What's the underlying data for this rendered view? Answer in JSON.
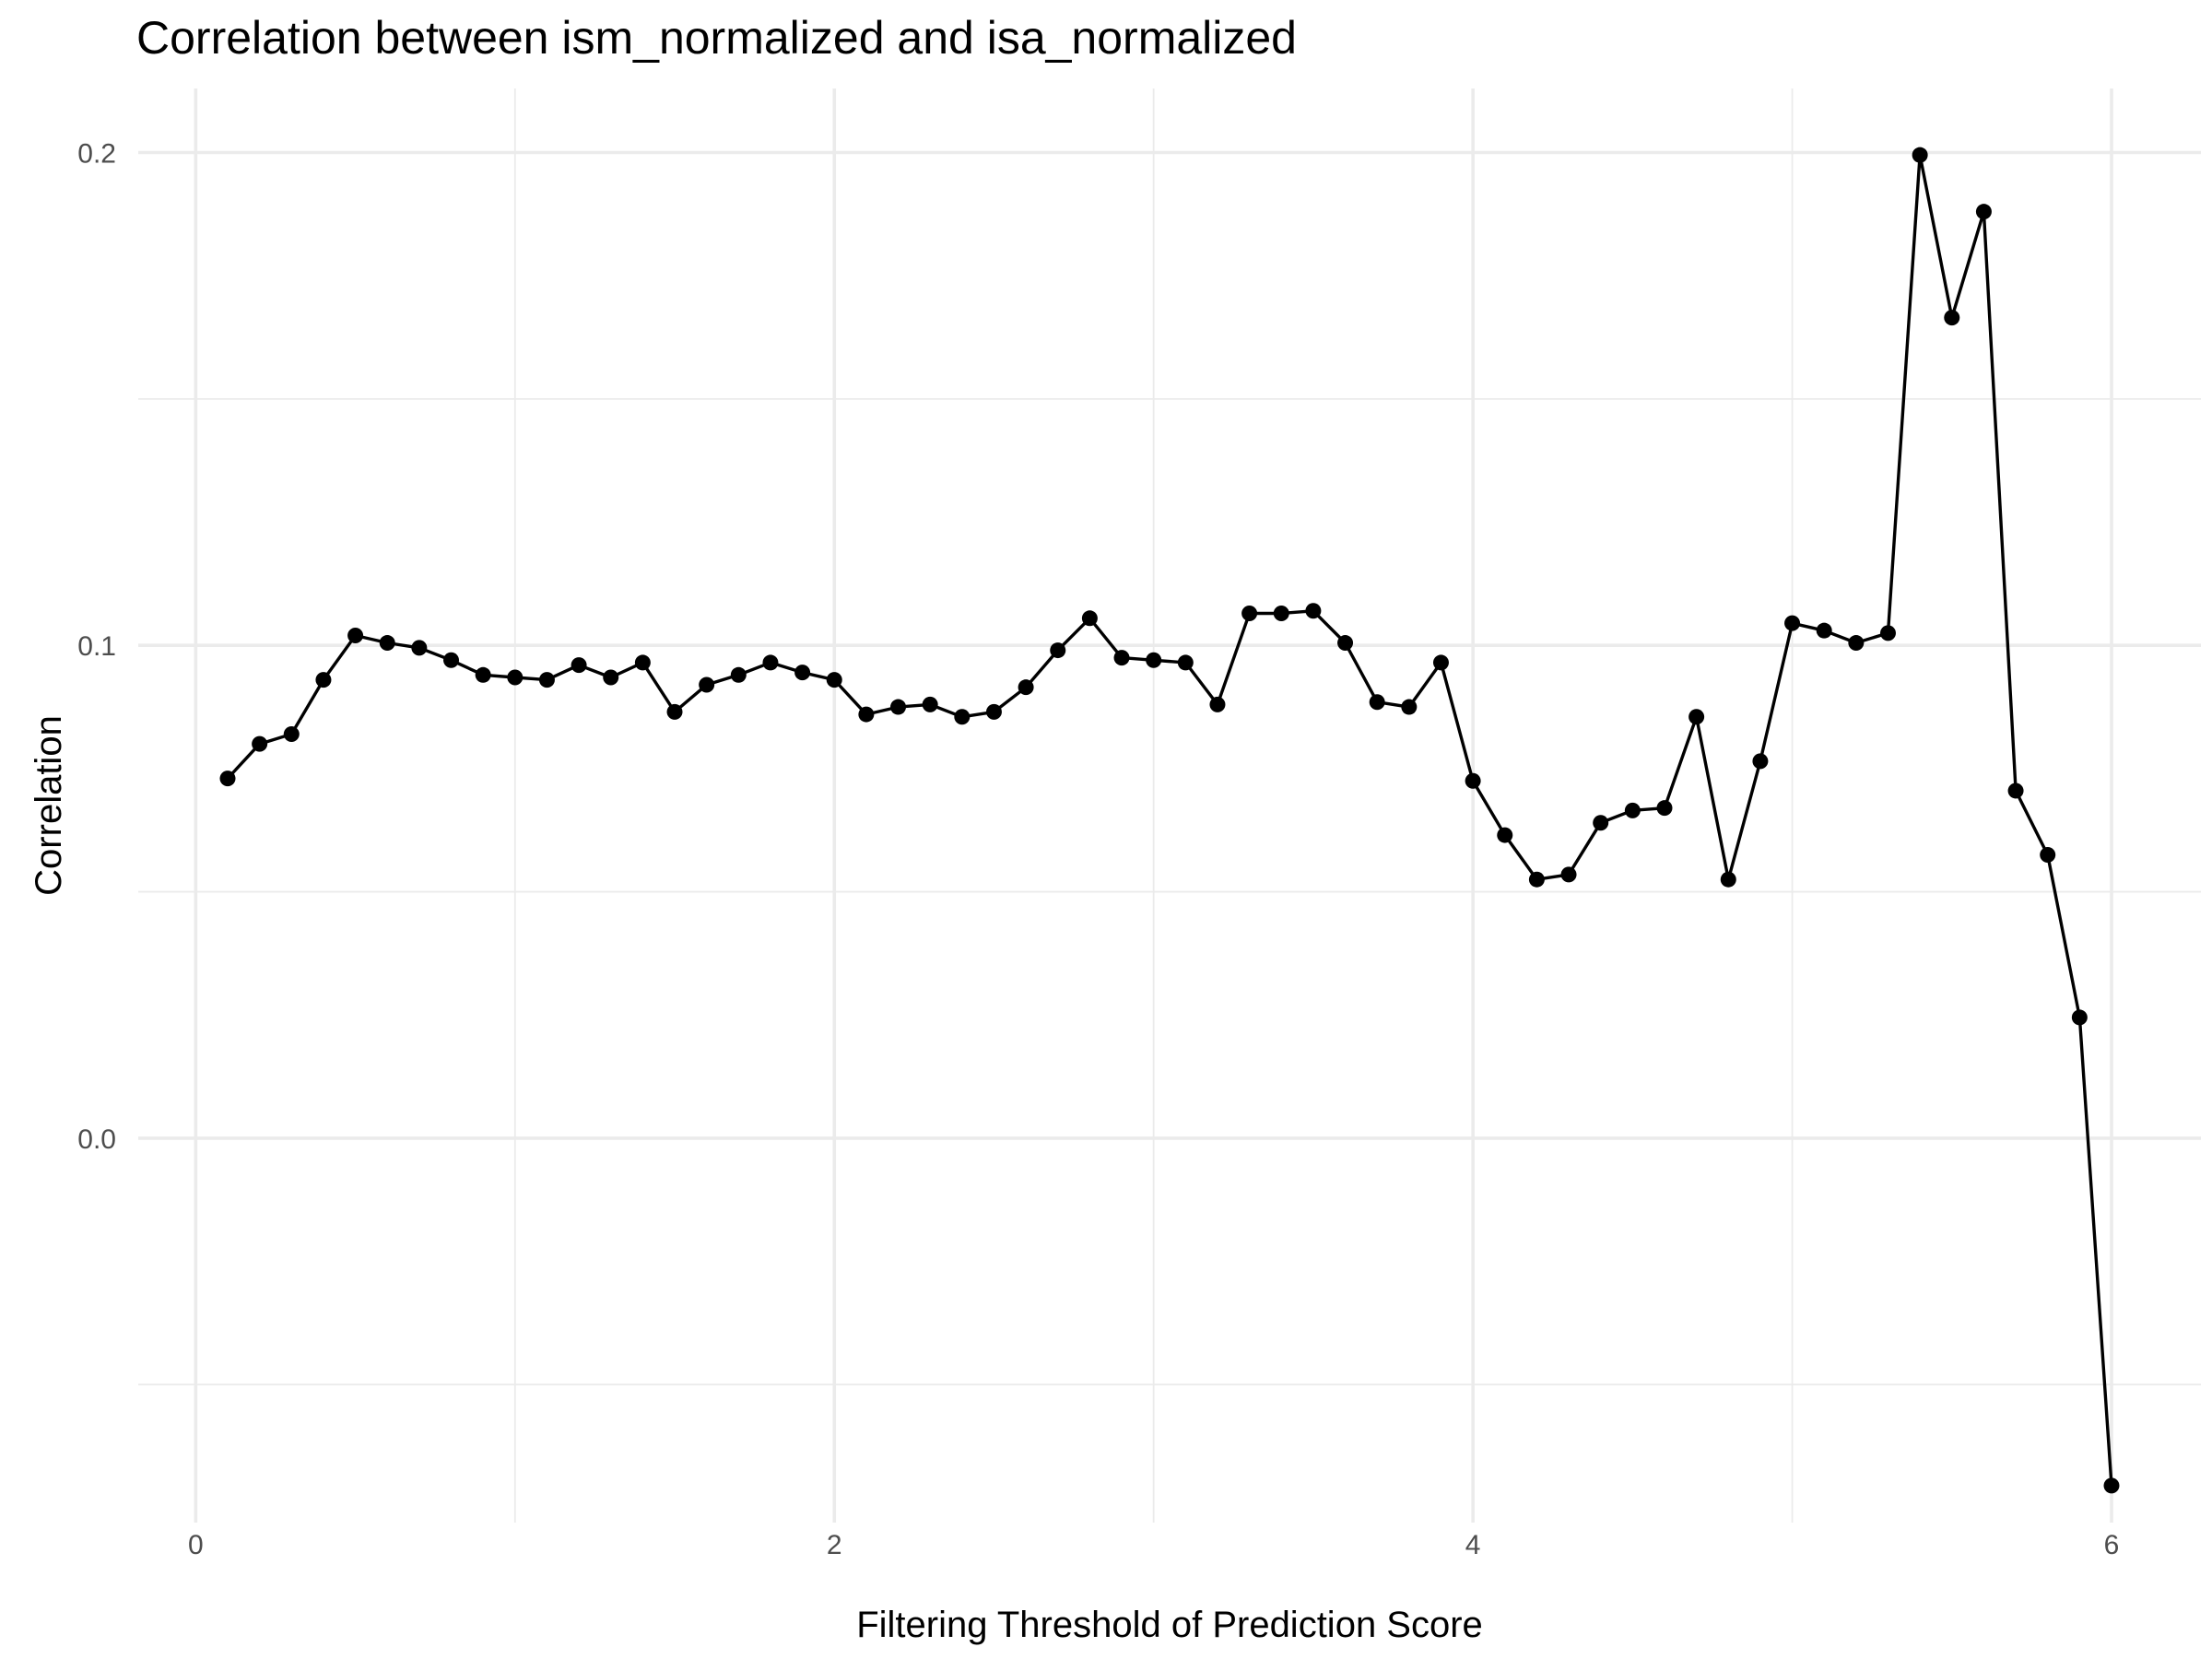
{
  "chart_data": {
    "type": "line",
    "title": "Correlation between ism_normalized and isa_normalized",
    "xlabel": "Filtering Threshold of Prediction Score",
    "ylabel": "Correlation",
    "xlim": [
      -0.18,
      6.28
    ],
    "ylim": [
      -0.078,
      0.213
    ],
    "x_ticks": [
      0,
      2,
      4,
      6
    ],
    "x_tick_labels": [
      "0",
      "2",
      "4",
      "6"
    ],
    "x_minor_ticks": [
      1,
      3,
      5
    ],
    "y_ticks": [
      0.0,
      0.1,
      0.2
    ],
    "y_tick_labels": [
      "0.0",
      "0.1",
      "0.2"
    ],
    "y_minor_ticks": [
      -0.05,
      0.05,
      0.15
    ],
    "grid": true,
    "legend": "none",
    "colors": {
      "line": "#000000",
      "point": "#000000",
      "grid": "#ebebeb",
      "tick_text": "#4d4d4d"
    },
    "series": [
      {
        "x": [
          0.1,
          0.2,
          0.3,
          0.4,
          0.5,
          0.6,
          0.7,
          0.8,
          0.9,
          1.0,
          1.1,
          1.2,
          1.3,
          1.4,
          1.5,
          1.6,
          1.7,
          1.8,
          1.9,
          2.0,
          2.1,
          2.2,
          2.3,
          2.4,
          2.5,
          2.6,
          2.7,
          2.8,
          2.9,
          3.0,
          3.1,
          3.2,
          3.3,
          3.4,
          3.5,
          3.6,
          3.7,
          3.8,
          3.9,
          4.0,
          4.1,
          4.2,
          4.3,
          4.4,
          4.5,
          4.6,
          4.7,
          4.8,
          4.9,
          5.0,
          5.1,
          5.2,
          5.3,
          5.4,
          5.5,
          5.6,
          5.7,
          5.8,
          5.9,
          6.0
        ],
        "values": [
          0.073,
          0.08,
          0.082,
          0.093,
          0.102,
          0.1005,
          0.0995,
          0.097,
          0.094,
          0.0935,
          0.093,
          0.096,
          0.0935,
          0.0965,
          0.0865,
          0.092,
          0.094,
          0.0965,
          0.0945,
          0.093,
          0.086,
          0.0875,
          0.088,
          0.0855,
          0.0865,
          0.0915,
          0.099,
          0.1055,
          0.0975,
          0.097,
          0.0965,
          0.088,
          0.1065,
          0.1065,
          0.107,
          0.1005,
          0.0885,
          0.0875,
          0.0965,
          0.0725,
          0.0615,
          0.0525,
          0.0535,
          0.064,
          0.0665,
          0.067,
          0.0855,
          0.0525,
          0.0765,
          0.1045,
          0.103,
          0.1005,
          0.1025,
          0.1995,
          0.1665,
          0.188,
          0.0705,
          0.0575,
          0.0245,
          -0.0705
        ]
      }
    ]
  }
}
